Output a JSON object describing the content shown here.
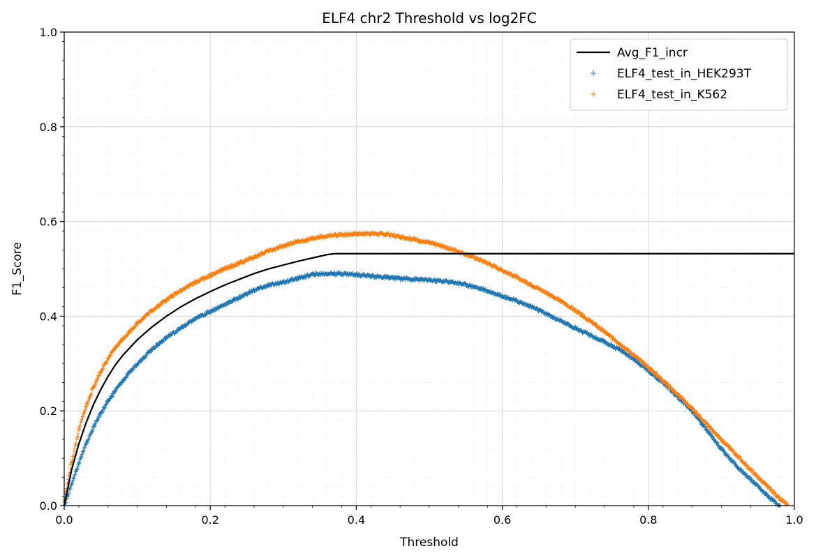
{
  "chart_data": {
    "type": "line",
    "title": "ELF4 chr2 Threshold vs log2FC",
    "xlabel": "Threshold",
    "ylabel": "F1_Score",
    "xlim": [
      0,
      1
    ],
    "ylim": [
      0,
      1
    ],
    "xticks": [
      "0.0",
      "0.2",
      "0.4",
      "0.6",
      "0.8",
      "1.0"
    ],
    "yticks": [
      "0.0",
      "0.2",
      "0.4",
      "0.6",
      "0.8",
      "1.0"
    ],
    "grid": true,
    "minor_grid": true,
    "legend_position": "top-right",
    "series": [
      {
        "name": "Avg_F1_incr",
        "kind": "line",
        "color": "#000000",
        "x": [
          0,
          0.01,
          0.02,
          0.03,
          0.04,
          0.05,
          0.06,
          0.07,
          0.08,
          0.1,
          0.12,
          0.14,
          0.16,
          0.18,
          0.2,
          0.22,
          0.24,
          0.26,
          0.28,
          0.3,
          0.32,
          0.34,
          0.36,
          0.37,
          0.4,
          0.6,
          0.8,
          1.0
        ],
        "y": [
          0.0,
          0.075,
          0.13,
          0.175,
          0.213,
          0.245,
          0.273,
          0.297,
          0.317,
          0.35,
          0.377,
          0.4,
          0.42,
          0.437,
          0.452,
          0.466,
          0.478,
          0.49,
          0.5,
          0.508,
          0.516,
          0.523,
          0.53,
          0.532,
          0.532,
          0.532,
          0.532,
          0.532
        ]
      },
      {
        "name": "ELF4_test_in_HEK293T",
        "kind": "scatter",
        "marker": "+",
        "color": "#1f77b4",
        "x": [
          0,
          0.01,
          0.02,
          0.03,
          0.04,
          0.05,
          0.06,
          0.07,
          0.08,
          0.1,
          0.12,
          0.14,
          0.16,
          0.18,
          0.2,
          0.22,
          0.24,
          0.26,
          0.28,
          0.3,
          0.32,
          0.34,
          0.36,
          0.38,
          0.4,
          0.42,
          0.44,
          0.46,
          0.48,
          0.5,
          0.52,
          0.54,
          0.56,
          0.58,
          0.6,
          0.62,
          0.64,
          0.66,
          0.68,
          0.7,
          0.72,
          0.74,
          0.76,
          0.78,
          0.8,
          0.82,
          0.84,
          0.86,
          0.88,
          0.9,
          0.92,
          0.94,
          0.96,
          0.97,
          0.98
        ],
        "y": [
          0.0,
          0.045,
          0.09,
          0.13,
          0.165,
          0.195,
          0.22,
          0.243,
          0.263,
          0.3,
          0.33,
          0.355,
          0.375,
          0.395,
          0.41,
          0.425,
          0.44,
          0.455,
          0.465,
          0.472,
          0.48,
          0.488,
          0.49,
          0.49,
          0.488,
          0.485,
          0.482,
          0.48,
          0.478,
          0.476,
          0.474,
          0.47,
          0.463,
          0.453,
          0.443,
          0.432,
          0.42,
          0.405,
          0.39,
          0.375,
          0.36,
          0.345,
          0.33,
          0.31,
          0.285,
          0.26,
          0.23,
          0.2,
          0.16,
          0.12,
          0.085,
          0.055,
          0.025,
          0.012,
          0.0
        ]
      },
      {
        "name": "ELF4_test_in_K562",
        "kind": "scatter",
        "marker": "+",
        "color": "#ff7f0e",
        "x": [
          0,
          0.01,
          0.02,
          0.03,
          0.04,
          0.05,
          0.06,
          0.07,
          0.08,
          0.1,
          0.12,
          0.14,
          0.16,
          0.18,
          0.2,
          0.22,
          0.24,
          0.26,
          0.28,
          0.3,
          0.32,
          0.34,
          0.36,
          0.38,
          0.4,
          0.42,
          0.44,
          0.46,
          0.48,
          0.5,
          0.52,
          0.54,
          0.56,
          0.58,
          0.6,
          0.62,
          0.64,
          0.66,
          0.68,
          0.7,
          0.72,
          0.74,
          0.76,
          0.78,
          0.8,
          0.82,
          0.84,
          0.86,
          0.88,
          0.9,
          0.92,
          0.94,
          0.96,
          0.98,
          0.99
        ],
        "y": [
          0.01,
          0.09,
          0.16,
          0.21,
          0.25,
          0.283,
          0.31,
          0.333,
          0.352,
          0.385,
          0.412,
          0.435,
          0.455,
          0.472,
          0.486,
          0.5,
          0.512,
          0.525,
          0.538,
          0.548,
          0.557,
          0.564,
          0.569,
          0.572,
          0.574,
          0.575,
          0.573,
          0.568,
          0.562,
          0.555,
          0.547,
          0.537,
          0.525,
          0.512,
          0.497,
          0.482,
          0.466,
          0.45,
          0.432,
          0.412,
          0.39,
          0.367,
          0.343,
          0.318,
          0.292,
          0.265,
          0.235,
          0.205,
          0.172,
          0.14,
          0.108,
          0.076,
          0.045,
          0.015,
          0.002
        ]
      }
    ]
  }
}
